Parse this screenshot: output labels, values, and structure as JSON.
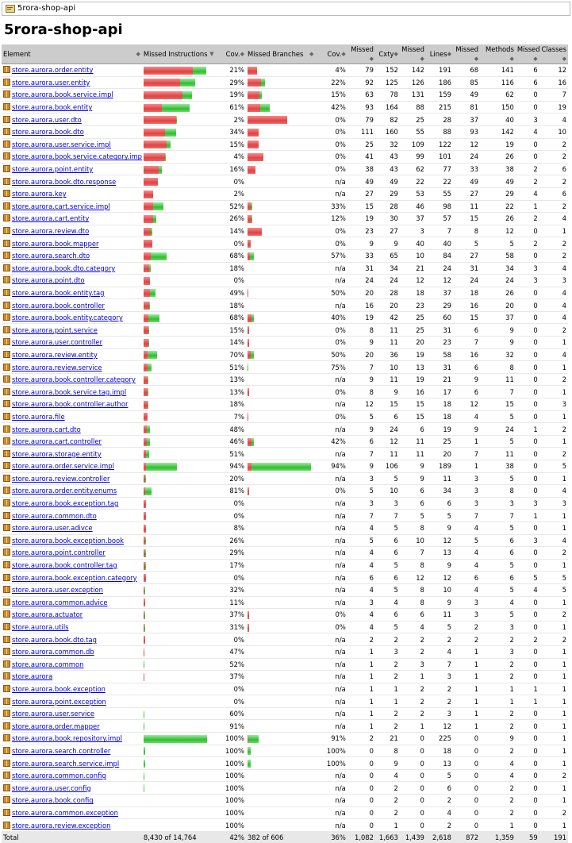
{
  "breadcrumb": {
    "label": "5rora-shop-api"
  },
  "page_title": "5rora-shop-api",
  "columns": [
    "Element",
    "Missed Instructions",
    "Cov.",
    "Missed Branches",
    "Cov.",
    "Missed",
    "Cxty",
    "Missed",
    "Lines",
    "Missed",
    "Methods",
    "Missed",
    "Classes"
  ],
  "rows": [
    [
      "store.aurora.order.entity",
      79,
      21,
      4,
      "21%",
      "4%",
      79,
      152,
      142,
      191,
      68,
      141,
      6,
      12
    ],
    [
      "store.aurora.user.entity",
      65,
      29,
      22,
      "29%",
      "22%",
      92,
      125,
      126,
      186,
      85,
      116,
      6,
      16
    ],
    [
      "store.aurora.book.service.impl",
      61,
      19,
      15,
      "19%",
      "15%",
      63,
      78,
      131,
      159,
      49,
      62,
      0,
      7
    ],
    [
      "store.aurora.book.entity",
      58,
      61,
      42,
      "61%",
      "42%",
      93,
      164,
      88,
      215,
      81,
      150,
      0,
      19
    ],
    [
      "store.aurora.user.dto",
      42,
      2,
      0,
      "2%",
      "0%",
      79,
      82,
      25,
      28,
      37,
      40,
      3,
      4
    ],
    [
      "store.aurora.book.dto",
      41,
      34,
      0,
      "34%",
      "0%",
      111,
      160,
      55,
      88,
      93,
      142,
      4,
      10
    ],
    [
      "store.aurora.user.service.impl",
      34,
      15,
      0,
      "15%",
      "0%",
      25,
      32,
      109,
      122,
      12,
      19,
      0,
      2
    ],
    [
      "store.aurora.book.service.category.impl",
      28,
      4,
      0,
      "4%",
      "0%",
      41,
      43,
      99,
      101,
      24,
      26,
      0,
      2
    ],
    [
      "store.aurora.point.entity",
      23,
      16,
      0,
      "16%",
      "0%",
      38,
      43,
      62,
      77,
      33,
      38,
      2,
      6
    ],
    [
      "store.aurora.book.dto.response",
      18,
      0,
      null,
      "0%",
      "n/a",
      49,
      49,
      22,
      22,
      49,
      49,
      2,
      2
    ],
    [
      "store.aurora.key",
      12,
      2,
      null,
      "2%",
      "n/a",
      27,
      29,
      53,
      55,
      27,
      29,
      4,
      6
    ],
    [
      "store.aurora.cart.service.impl",
      25,
      52,
      33,
      "52%",
      "33%",
      15,
      28,
      46,
      98,
      11,
      22,
      1,
      2
    ],
    [
      "store.aurora.cart.entity",
      16,
      26,
      12,
      "26%",
      "12%",
      19,
      30,
      37,
      57,
      15,
      26,
      2,
      4
    ],
    [
      "store.aurora.review.dto",
      11,
      14,
      0,
      "14%",
      "0%",
      23,
      27,
      3,
      7,
      8,
      12,
      0,
      1
    ],
    [
      "store.aurora.book.mapper",
      11,
      0,
      0,
      "0%",
      "0%",
      9,
      9,
      40,
      40,
      5,
      5,
      2,
      2
    ],
    [
      "store.aurora.search.dto",
      29,
      68,
      57,
      "68%",
      "57%",
      33,
      65,
      10,
      84,
      27,
      58,
      0,
      2
    ],
    [
      "store.aurora.book.dto.category",
      9,
      18,
      null,
      "18%",
      "n/a",
      31,
      34,
      21,
      24,
      31,
      34,
      3,
      4
    ],
    [
      "store.aurora.point.dto",
      8,
      0,
      null,
      "0%",
      "n/a",
      24,
      24,
      12,
      12,
      24,
      24,
      3,
      3
    ],
    [
      "store.aurora.book.entity.tag",
      15,
      49,
      50,
      "49%",
      "50%",
      20,
      28,
      18,
      37,
      18,
      26,
      0,
      4
    ],
    [
      "store.aurora.book.controller",
      8,
      18,
      null,
      "18%",
      "n/a",
      16,
      20,
      23,
      29,
      16,
      20,
      0,
      4
    ],
    [
      "store.aurora.book.entity.category",
      20,
      68,
      40,
      "68%",
      "40%",
      19,
      42,
      25,
      60,
      15,
      37,
      0,
      4
    ],
    [
      "store.aurora.point.service",
      7,
      15,
      0,
      "15%",
      "0%",
      8,
      11,
      25,
      31,
      6,
      9,
      0,
      2
    ],
    [
      "store.aurora.user.controller",
      7,
      14,
      0,
      "14%",
      "0%",
      9,
      11,
      20,
      23,
      7,
      9,
      0,
      1
    ],
    [
      "store.aurora.review.entity",
      17,
      70,
      50,
      "70%",
      "50%",
      20,
      36,
      19,
      58,
      16,
      32,
      0,
      4
    ],
    [
      "store.aurora.review.service",
      10,
      51,
      75,
      "51%",
      "75%",
      7,
      10,
      13,
      31,
      6,
      8,
      0,
      1
    ],
    [
      "store.aurora.book.controller.category",
      6,
      13,
      null,
      "13%",
      "n/a",
      9,
      11,
      19,
      21,
      9,
      11,
      0,
      2
    ],
    [
      "store.aurora.book.service.tag.impl",
      6,
      13,
      0,
      "13%",
      "0%",
      8,
      9,
      16,
      17,
      6,
      7,
      0,
      1
    ],
    [
      "store.aurora.book.controller.author",
      6,
      18,
      null,
      "18%",
      "n/a",
      12,
      15,
      15,
      18,
      12,
      15,
      0,
      3
    ],
    [
      "store.aurora.file",
      5,
      7,
      0,
      "7%",
      "0%",
      5,
      6,
      15,
      18,
      4,
      5,
      0,
      1
    ],
    [
      "store.aurora.cart.dto",
      8,
      48,
      null,
      "48%",
      "n/a",
      9,
      24,
      6,
      19,
      9,
      24,
      1,
      2
    ],
    [
      "store.aurora.cart.controller",
      8,
      46,
      42,
      "46%",
      "42%",
      6,
      12,
      11,
      25,
      1,
      5,
      0,
      1
    ],
    [
      "store.aurora.storage.entity",
      7,
      51,
      null,
      "51%",
      "n/a",
      7,
      11,
      11,
      20,
      7,
      11,
      0,
      2
    ],
    [
      "store.aurora.order.service.impl",
      42,
      94,
      94,
      "94%",
      "94%",
      9,
      106,
      9,
      189,
      1,
      38,
      0,
      5
    ],
    [
      "store.aurora.review.controller",
      3,
      20,
      null,
      "20%",
      "n/a",
      3,
      5,
      9,
      11,
      3,
      5,
      0,
      1
    ],
    [
      "store.aurora.order.entity.enums",
      10,
      81,
      0,
      "81%",
      "0%",
      5,
      10,
      6,
      34,
      3,
      8,
      0,
      4
    ],
    [
      "store.aurora.book.exception.tag",
      3,
      0,
      null,
      "0%",
      "n/a",
      3,
      3,
      6,
      6,
      3,
      3,
      3,
      3
    ],
    [
      "store.aurora.common.dto",
      3,
      0,
      null,
      "0%",
      "n/a",
      7,
      7,
      5,
      5,
      7,
      7,
      1,
      1
    ],
    [
      "store.aurora.user.adivce",
      3,
      8,
      null,
      "8%",
      "n/a",
      4,
      5,
      8,
      9,
      4,
      5,
      0,
      1
    ],
    [
      "store.aurora.book.exception.book",
      3,
      26,
      null,
      "26%",
      "n/a",
      5,
      6,
      10,
      12,
      5,
      6,
      3,
      4
    ],
    [
      "store.aurora.point.controller",
      3,
      29,
      null,
      "29%",
      "n/a",
      4,
      6,
      7,
      13,
      4,
      6,
      0,
      2
    ],
    [
      "store.aurora.book.controller.tag",
      3,
      17,
      null,
      "17%",
      "n/a",
      4,
      5,
      8,
      9,
      4,
      5,
      0,
      1
    ],
    [
      "store.aurora.book.exception.category",
      3,
      0,
      null,
      "0%",
      "n/a",
      6,
      6,
      12,
      12,
      6,
      6,
      5,
      5
    ],
    [
      "store.aurora.user.exception",
      2,
      32,
      null,
      "32%",
      "n/a",
      4,
      5,
      8,
      10,
      4,
      5,
      4,
      5
    ],
    [
      "store.aurora.common.advice",
      2,
      11,
      null,
      "11%",
      "n/a",
      3,
      4,
      8,
      9,
      3,
      4,
      0,
      1
    ],
    [
      "store.aurora.actuator",
      2,
      37,
      0,
      "37%",
      "0%",
      4,
      6,
      6,
      11,
      3,
      5,
      0,
      2
    ],
    [
      "store.aurora.utils",
      2,
      31,
      0,
      "31%",
      "0%",
      4,
      5,
      4,
      5,
      2,
      3,
      0,
      1
    ],
    [
      "store.aurora.book.dto.tag",
      2,
      0,
      null,
      "0%",
      "n/a",
      2,
      2,
      2,
      2,
      2,
      2,
      2,
      2
    ],
    [
      "store.aurora.common.db",
      1,
      47,
      null,
      "47%",
      "n/a",
      1,
      3,
      2,
      4,
      1,
      3,
      0,
      1
    ],
    [
      "store.aurora.common",
      1,
      52,
      null,
      "52%",
      "n/a",
      1,
      2,
      3,
      7,
      1,
      2,
      0,
      1
    ],
    [
      "store.aurora",
      1,
      37,
      null,
      "37%",
      "n/a",
      1,
      2,
      1,
      3,
      1,
      2,
      0,
      1
    ],
    [
      "store.aurora.book.exception",
      0,
      0,
      null,
      "0%",
      "n/a",
      1,
      1,
      2,
      2,
      1,
      1,
      1,
      1
    ],
    [
      "store.aurora.point.exception",
      0,
      0,
      null,
      "0%",
      "n/a",
      1,
      1,
      2,
      2,
      1,
      1,
      1,
      1
    ],
    [
      "store.aurora.user.service",
      1,
      60,
      null,
      "60%",
      "n/a",
      1,
      2,
      2,
      3,
      1,
      2,
      0,
      1
    ],
    [
      "store.aurora.order.mapper",
      1,
      91,
      null,
      "91%",
      "n/a",
      1,
      2,
      1,
      12,
      1,
      2,
      0,
      1
    ],
    [
      "store.aurora.book.repository.impl",
      0,
      100,
      91,
      "100%",
      "91%",
      2,
      21,
      0,
      225,
      0,
      9,
      0,
      1
    ],
    [
      "store.aurora.search.controller",
      0,
      100,
      100,
      "100%",
      "100%",
      0,
      8,
      0,
      18,
      0,
      2,
      0,
      1
    ],
    [
      "store.aurora.search.service.impl",
      0,
      100,
      100,
      "100%",
      "100%",
      0,
      9,
      0,
      13,
      0,
      4,
      0,
      1
    ],
    [
      "store.aurora.common.config",
      0,
      100,
      null,
      "100%",
      "n/a",
      0,
      4,
      0,
      5,
      0,
      4,
      0,
      2
    ],
    [
      "store.aurora.user.config",
      0,
      100,
      null,
      "100%",
      "n/a",
      0,
      2,
      0,
      6,
      0,
      2,
      0,
      1
    ],
    [
      "store.aurora.book.config",
      0,
      100,
      null,
      "100%",
      "n/a",
      0,
      2,
      0,
      2,
      0,
      2,
      0,
      1
    ],
    [
      "store.aurora.common.exception",
      0,
      100,
      null,
      "100%",
      "n/a",
      0,
      2,
      0,
      4,
      0,
      2,
      0,
      2
    ],
    [
      "store.aurora.review.exception",
      0,
      100,
      null,
      "100%",
      "n/a",
      0,
      1,
      0,
      2,
      0,
      1,
      0,
      1
    ]
  ],
  "instr_bar_widths": [
    79,
    65,
    61,
    58,
    42,
    41,
    34,
    28,
    23,
    18,
    12,
    25,
    16,
    11,
    11,
    29,
    9,
    8,
    15,
    8,
    20,
    7,
    7,
    17,
    10,
    6,
    6,
    6,
    5,
    8,
    8,
    7,
    42,
    3,
    10,
    3,
    3,
    3,
    3,
    3,
    3,
    3,
    2,
    2,
    2,
    2,
    2,
    1,
    1,
    1,
    0,
    0,
    1,
    1,
    80,
    2,
    2,
    1,
    1,
    0,
    0,
    0
  ],
  "branch_bar_widths": [
    12,
    22,
    18,
    28,
    50,
    14,
    14,
    20,
    10,
    0,
    0,
    6,
    6,
    18,
    4,
    8,
    0,
    0,
    1,
    0,
    8,
    2,
    2,
    8,
    1,
    0,
    2,
    0,
    1,
    0,
    8,
    0,
    80,
    0,
    2,
    0,
    0,
    0,
    0,
    0,
    0,
    0,
    0,
    0,
    2,
    2,
    0,
    0,
    0,
    0,
    0,
    0,
    0,
    0,
    14,
    4,
    4,
    0,
    0,
    0,
    0,
    0
  ],
  "footer": {
    "label": "Total",
    "missed_instructions": "8,430 of 14,764",
    "instr_cov": "42%",
    "missed_branches": "382 of 606",
    "branch_cov": "36%",
    "missed_cxty": "1,082",
    "cxty": "1,663",
    "missed_lines": "1,439",
    "lines": "2,618",
    "missed_methods": "872",
    "methods": "1,359",
    "missed_classes": "59",
    "classes": "191"
  }
}
